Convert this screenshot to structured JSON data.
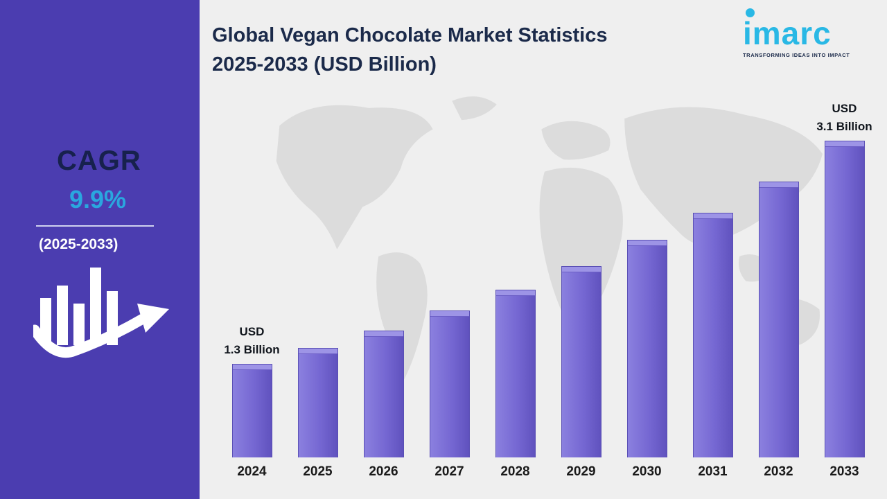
{
  "sidebar": {
    "cagr_label": "CAGR",
    "cagr_value": "9.9%",
    "period": "(2025-2033)",
    "background_color": "#4b3db0",
    "icon": "bar-chart-growth-arrow-icon"
  },
  "header": {
    "title_line1": "Global Vegan Chocolate Market Statistics",
    "title_line2": "2025-2033 (USD Billion)"
  },
  "logo": {
    "name": "imarc",
    "tagline": "TRANSFORMING IDEAS INTO IMPACT",
    "accent_color": "#29b8e5"
  },
  "chart_data": {
    "type": "bar",
    "title": "Global Vegan Chocolate Market Statistics 2025-2033 (USD Billion)",
    "categories": [
      "2024",
      "2025",
      "2026",
      "2027",
      "2028",
      "2029",
      "2030",
      "2031",
      "2032",
      "2033"
    ],
    "values": [
      1.3,
      1.43,
      1.57,
      1.73,
      1.9,
      2.09,
      2.3,
      2.52,
      2.77,
      3.1
    ],
    "unit": "USD Billion",
    "bar_color": "#7567d2",
    "xlabel": "",
    "ylabel": "",
    "ylim": [
      0,
      3.5
    ],
    "grid": false,
    "legend": "none",
    "annotations": [
      {
        "category": "2024",
        "text": "USD\n1.3 Billion"
      },
      {
        "category": "2033",
        "text": "USD\n3.1 Billion"
      }
    ]
  }
}
